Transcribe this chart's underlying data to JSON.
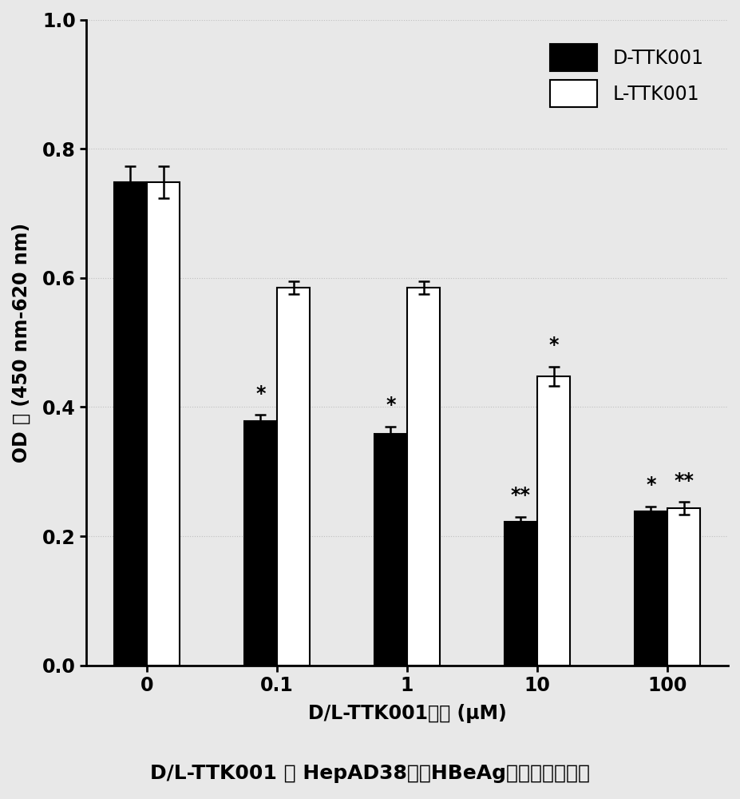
{
  "categories": [
    "0",
    "0.1",
    "1",
    "10",
    "100"
  ],
  "d_values": [
    0.748,
    0.378,
    0.358,
    0.222,
    0.238
  ],
  "l_values": [
    0.748,
    0.585,
    0.585,
    0.448,
    0.243
  ],
  "d_errors": [
    0.025,
    0.01,
    0.012,
    0.008,
    0.008
  ],
  "l_errors": [
    0.025,
    0.01,
    0.01,
    0.015,
    0.01
  ],
  "d_color": "#000000",
  "l_color": "#ffffff",
  "bar_edgecolor": "#000000",
  "ylabel": "OD 値 (450 nm-620 nm)",
  "xlabel": "D/L-TTK001浓度 (μM)",
  "title": "D/L-TTK001 对 HepAD38细胳HBeAg分泌的抑制作用",
  "legend_d": "D-TTK001",
  "legend_l": "L-TTK001",
  "ylim": [
    0.0,
    1.0
  ],
  "yticks": [
    0.0,
    0.2,
    0.4,
    0.6,
    0.8,
    1.0
  ],
  "d_annotations": [
    "",
    "*",
    "*",
    "**",
    "*"
  ],
  "l_annotations": [
    "",
    "",
    "",
    "*",
    "**"
  ],
  "bar_width": 0.38,
  "figsize": [
    9.27,
    10.0
  ],
  "dpi": 100,
  "bg_color": "#e8e8e8",
  "grid_color": "#c0c0c0"
}
